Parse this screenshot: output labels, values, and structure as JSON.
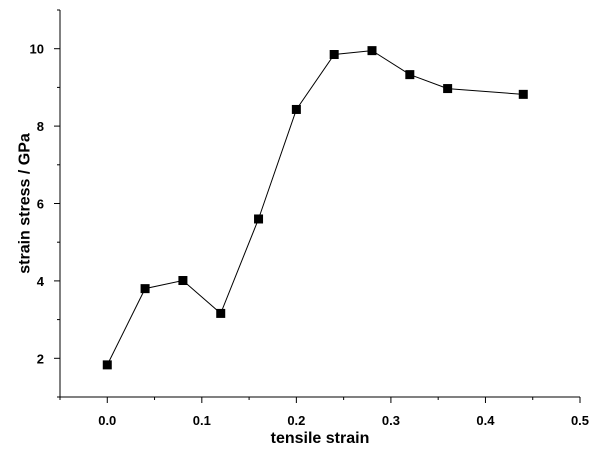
{
  "chart_data": {
    "type": "line",
    "title": "",
    "xlabel": "tensile strain",
    "ylabel": "strain stress / GPa",
    "xlim": [
      -0.05,
      0.5
    ],
    "ylim": [
      1,
      11
    ],
    "xticks": [
      0.0,
      0.1,
      0.2,
      0.3,
      0.4,
      0.5
    ],
    "xtick_labels": [
      "0.0",
      "0.1",
      "0.2",
      "0.3",
      "0.4",
      "0.5"
    ],
    "yticks": [
      2,
      4,
      6,
      8,
      10
    ],
    "ytick_labels": [
      "2",
      "4",
      "6",
      "8",
      "10"
    ],
    "grid": false,
    "legend": "none",
    "marker": "filled-square",
    "colors": {
      "line": "#000000",
      "marker": "#000000",
      "axis": "#000000"
    },
    "series": [
      {
        "x": [
          0.0,
          0.04,
          0.08,
          0.12,
          0.16,
          0.2,
          0.24,
          0.28,
          0.32,
          0.36,
          0.44
        ],
        "y": [
          1.83,
          3.8,
          4.01,
          3.16,
          5.6,
          8.43,
          9.85,
          9.95,
          9.33,
          8.97,
          8.82
        ]
      }
    ]
  }
}
